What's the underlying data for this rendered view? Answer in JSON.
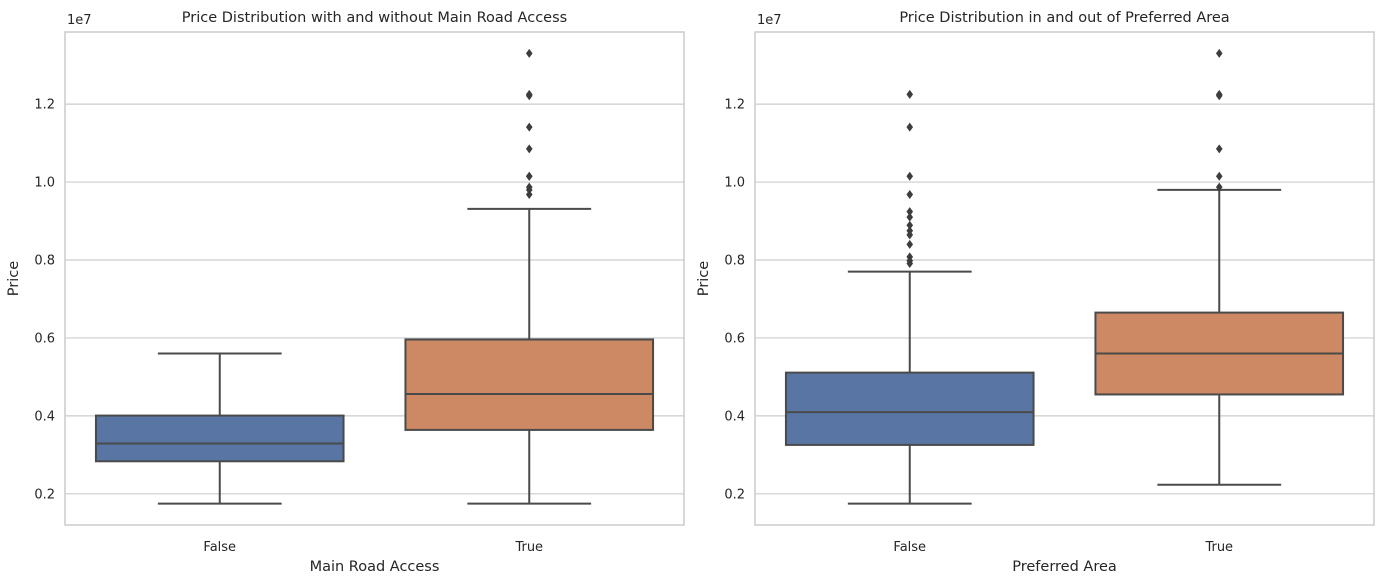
{
  "chart_data": [
    {
      "type": "box",
      "title": "Price Distribution with and without Main Road Access",
      "xlabel": "Main Road Access",
      "ylabel": "Price",
      "y_scale_offset": "1e7",
      "ylim": [
        1200000,
        13850000
      ],
      "yticks": [
        2000000,
        4000000,
        6000000,
        8000000,
        10000000,
        12000000
      ],
      "ytick_labels": [
        "0.2",
        "0.4",
        "0.6",
        "0.8",
        "1.0",
        "1.2"
      ],
      "grid": true,
      "categories": [
        "False",
        "True"
      ],
      "boxes": [
        {
          "category": "False",
          "color": "#5875a4",
          "whisker_low": 1750000,
          "q1": 2835000,
          "median": 3290000,
          "q3": 4007500,
          "whisker_high": 5600000,
          "outliers": []
        },
        {
          "category": "True",
          "color": "#cc8963",
          "whisker_low": 1750000,
          "q1": 3640000,
          "median": 4560000,
          "q3": 5960000,
          "whisker_high": 9310000,
          "outliers": [
            9681000,
            9800000,
            9870000,
            10150000,
            10150000,
            10850000,
            11410000,
            12215000,
            12250000,
            13300000
          ]
        }
      ]
    },
    {
      "type": "box",
      "title": "Price Distribution in and out of Preferred Area",
      "xlabel": "Preferred Area",
      "ylabel": "Price",
      "y_scale_offset": "1e7",
      "ylim": [
        1200000,
        13850000
      ],
      "yticks": [
        2000000,
        4000000,
        6000000,
        8000000,
        10000000,
        12000000
      ],
      "ytick_labels": [
        "0.2",
        "0.4",
        "0.6",
        "0.8",
        "1.0",
        "1.2"
      ],
      "grid": true,
      "categories": [
        "False",
        "True"
      ],
      "boxes": [
        {
          "category": "False",
          "color": "#5875a4",
          "whisker_low": 1750000,
          "q1": 3255000,
          "median": 4095000,
          "q3": 5110000,
          "whisker_high": 7700000,
          "outliers": [
            7910000,
            7980000,
            8080000,
            8400000,
            8645000,
            8750000,
            8890000,
            9100000,
            9240000,
            9681000,
            10150000,
            11410000,
            12250000
          ]
        },
        {
          "category": "True",
          "color": "#cc8963",
          "whisker_low": 2233000,
          "q1": 4550000,
          "median": 5600000,
          "q3": 6650000,
          "whisker_high": 9800000,
          "outliers": [
            9870000,
            10150000,
            10850000,
            12215000,
            12250000,
            13300000
          ]
        }
      ]
    }
  ]
}
